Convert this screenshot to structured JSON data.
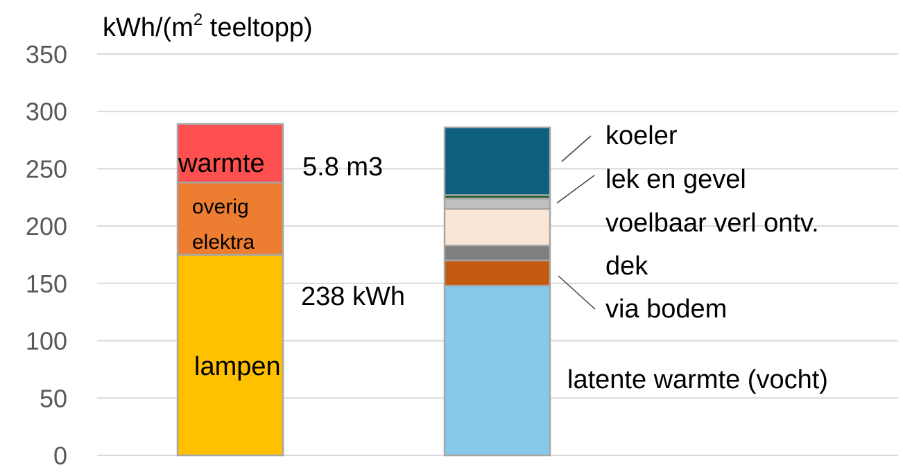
{
  "chart_data": {
    "type": "bar",
    "stacked": true,
    "ylabel": "kWh/(m",
    "ylabel_sup": "2",
    "ylabel_suffix": " teeltopp)",
    "ylim": [
      0,
      350
    ],
    "yticks": [
      0,
      50,
      100,
      150,
      200,
      250,
      300,
      350
    ],
    "grid": true,
    "bars": [
      {
        "segments": [
          {
            "name": "lampen",
            "value": 175,
            "color": "#ffc000"
          },
          {
            "name": "overig elektra",
            "value": 63,
            "color": "#ed7d31"
          },
          {
            "name": "warmte",
            "value": 51,
            "color": "#ff5050"
          }
        ],
        "annotations": [
          {
            "text": "238 kWh",
            "y": 140
          },
          {
            "text": "5.8 m3",
            "y": 250
          }
        ]
      },
      {
        "segments": [
          {
            "name": "latente warmte (vocht)",
            "value": 148,
            "color": "#85c9eb"
          },
          {
            "name": "via bodem",
            "value": 22,
            "color": "#c55a11"
          },
          {
            "name": "dek",
            "value": 13,
            "color": "#7f7f7f"
          },
          {
            "name": "voelbaar verl ontv.",
            "value": 32,
            "color": "#fbe5d6"
          },
          {
            "name": "lek en gevel",
            "value": 9,
            "color": "#bfbfbf"
          },
          {
            "name": "",
            "value": 3,
            "color": "#1e5b2e"
          },
          {
            "name": "koeler",
            "value": 59,
            "color": "#0d5f7d"
          }
        ]
      }
    ],
    "labels": {
      "lampen": "lampen",
      "overig": "overig",
      "elektra": "elektra",
      "warmte": "warmte",
      "koeler": "koeler",
      "lek_en_gevel": "lek en gevel",
      "voelbaar": "voelbaar verl ontv.",
      "dek": "dek",
      "via_bodem": "via bodem",
      "latente": "latente warmte (vocht)",
      "kwh": "238 kWh",
      "m3": "5.8 m3"
    },
    "colors": {
      "grid": "#d9d9d9",
      "bar_border": "#a6a6a6",
      "tick_text": "#595959"
    }
  }
}
